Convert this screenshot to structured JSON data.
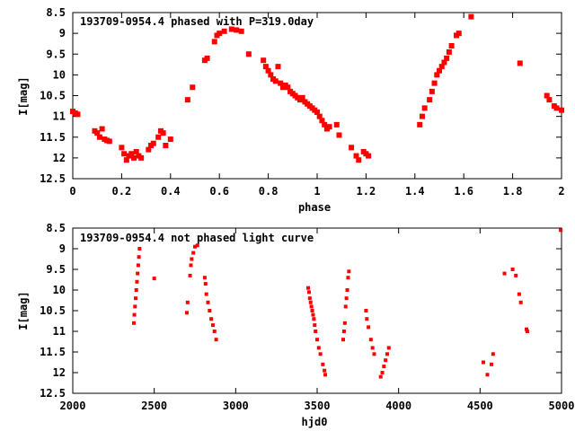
{
  "chart_data": [
    {
      "type": "scatter",
      "title": "193709-0954.4 phased with P=319.0day",
      "xlabel": "phase",
      "ylabel": "I[mag]",
      "xlim": [
        0,
        2
      ],
      "ylim": [
        8.5,
        12.5
      ],
      "y_inverted": true,
      "xticks": [
        0,
        0.2,
        0.4,
        0.6,
        0.8,
        1,
        1.2,
        1.4,
        1.6,
        1.8,
        2
      ],
      "xtick_labels": [
        "0",
        "0.2",
        "0.4",
        "0.6",
        "0.8",
        "1",
        "1.2",
        "1.4",
        "1.6",
        "1.8",
        "2"
      ],
      "yticks": [
        8.5,
        9,
        9.5,
        10,
        10.5,
        11,
        11.5,
        12,
        12.5
      ],
      "ytick_labels": [
        "8.5",
        "9",
        "9.5",
        "10",
        "10.5",
        "11",
        "11.5",
        "12",
        "12.5"
      ],
      "grid": false,
      "marker_color": "#ff0000",
      "points": [
        [
          0.0,
          10.88
        ],
        [
          0.01,
          10.92
        ],
        [
          0.02,
          10.95
        ],
        [
          0.09,
          11.35
        ],
        [
          0.1,
          11.4
        ],
        [
          0.11,
          11.5
        ],
        [
          0.12,
          11.3
        ],
        [
          0.13,
          11.55
        ],
        [
          0.14,
          11.58
        ],
        [
          0.15,
          11.6
        ],
        [
          0.2,
          11.75
        ],
        [
          0.21,
          11.9
        ],
        [
          0.22,
          12.05
        ],
        [
          0.23,
          11.95
        ],
        [
          0.24,
          11.9
        ],
        [
          0.25,
          12.0
        ],
        [
          0.26,
          11.85
        ],
        [
          0.27,
          11.95
        ],
        [
          0.28,
          12.0
        ],
        [
          0.31,
          11.8
        ],
        [
          0.32,
          11.7
        ],
        [
          0.33,
          11.65
        ],
        [
          0.35,
          11.5
        ],
        [
          0.36,
          11.35
        ],
        [
          0.37,
          11.4
        ],
        [
          0.38,
          11.7
        ],
        [
          0.4,
          11.55
        ],
        [
          0.47,
          10.6
        ],
        [
          0.49,
          10.3
        ],
        [
          0.54,
          9.65
        ],
        [
          0.55,
          9.6
        ],
        [
          0.58,
          9.2
        ],
        [
          0.59,
          9.05
        ],
        [
          0.6,
          9.0
        ],
        [
          0.62,
          8.95
        ],
        [
          0.65,
          8.9
        ],
        [
          0.67,
          8.92
        ],
        [
          0.69,
          8.95
        ],
        [
          0.72,
          9.5
        ],
        [
          0.78,
          9.65
        ],
        [
          0.79,
          9.8
        ],
        [
          0.8,
          9.9
        ],
        [
          0.81,
          10.0
        ],
        [
          0.82,
          10.1
        ],
        [
          0.83,
          10.15
        ],
        [
          0.84,
          9.8
        ],
        [
          0.85,
          10.2
        ],
        [
          0.86,
          10.3
        ],
        [
          0.87,
          10.25
        ],
        [
          0.88,
          10.3
        ],
        [
          0.89,
          10.4
        ],
        [
          0.9,
          10.45
        ],
        [
          0.91,
          10.5
        ],
        [
          0.92,
          10.55
        ],
        [
          0.93,
          10.6
        ],
        [
          0.94,
          10.55
        ],
        [
          0.95,
          10.65
        ],
        [
          0.96,
          10.7
        ],
        [
          0.97,
          10.75
        ],
        [
          0.98,
          10.8
        ],
        [
          0.99,
          10.85
        ],
        [
          1.0,
          10.9
        ],
        [
          1.01,
          11.0
        ],
        [
          1.02,
          11.1
        ],
        [
          1.03,
          11.2
        ],
        [
          1.04,
          11.3
        ],
        [
          1.05,
          11.25
        ],
        [
          1.08,
          11.2
        ],
        [
          1.09,
          11.45
        ],
        [
          1.14,
          11.75
        ],
        [
          1.16,
          11.95
        ],
        [
          1.17,
          12.05
        ],
        [
          1.19,
          11.85
        ],
        [
          1.2,
          11.9
        ],
        [
          1.21,
          11.95
        ],
        [
          1.42,
          11.2
        ],
        [
          1.43,
          11.0
        ],
        [
          1.44,
          10.8
        ],
        [
          1.46,
          10.6
        ],
        [
          1.47,
          10.4
        ],
        [
          1.48,
          10.2
        ],
        [
          1.49,
          10.0
        ],
        [
          1.5,
          9.9
        ],
        [
          1.51,
          9.8
        ],
        [
          1.52,
          9.7
        ],
        [
          1.53,
          9.6
        ],
        [
          1.54,
          9.45
        ],
        [
          1.55,
          9.3
        ],
        [
          1.57,
          9.05
        ],
        [
          1.58,
          9.0
        ],
        [
          1.63,
          8.6
        ],
        [
          1.83,
          9.72
        ],
        [
          1.94,
          10.5
        ],
        [
          1.95,
          10.6
        ],
        [
          1.97,
          10.75
        ],
        [
          1.98,
          10.8
        ],
        [
          2.0,
          10.85
        ]
      ]
    },
    {
      "type": "scatter",
      "title": "193709-0954.4 not phased light curve",
      "xlabel": "hjd0",
      "ylabel": "I[mag]",
      "xlim": [
        2000,
        5000
      ],
      "ylim": [
        8.5,
        12.5
      ],
      "y_inverted": true,
      "xticks": [
        2000,
        2500,
        3000,
        3500,
        4000,
        4500,
        5000
      ],
      "xtick_labels": [
        "2000",
        "2500",
        "3000",
        "3500",
        "4000",
        "4500",
        "5000"
      ],
      "yticks": [
        8.5,
        9,
        9.5,
        10,
        10.5,
        11,
        11.5,
        12,
        12.5
      ],
      "ytick_labels": [
        "8.5",
        "9",
        "9.5",
        "10",
        "10.5",
        "11",
        "11.5",
        "12",
        "12.5"
      ],
      "grid": false,
      "marker_color": "#ff0000",
      "points": [
        [
          2375,
          10.8
        ],
        [
          2378,
          10.6
        ],
        [
          2382,
          10.4
        ],
        [
          2386,
          10.2
        ],
        [
          2390,
          10.0
        ],
        [
          2394,
          9.8
        ],
        [
          2398,
          9.6
        ],
        [
          2402,
          9.4
        ],
        [
          2406,
          9.2
        ],
        [
          2410,
          9.0
        ],
        [
          2500,
          9.72
        ],
        [
          2700,
          10.55
        ],
        [
          2705,
          10.3
        ],
        [
          2720,
          9.65
        ],
        [
          2725,
          9.4
        ],
        [
          2730,
          9.25
        ],
        [
          2740,
          9.1
        ],
        [
          2750,
          8.95
        ],
        [
          2765,
          8.92
        ],
        [
          2810,
          9.7
        ],
        [
          2815,
          9.85
        ],
        [
          2820,
          10.1
        ],
        [
          2830,
          10.3
        ],
        [
          2840,
          10.5
        ],
        [
          2850,
          10.7
        ],
        [
          2860,
          10.85
        ],
        [
          2870,
          11.0
        ],
        [
          2880,
          11.2
        ],
        [
          3445,
          9.95
        ],
        [
          3450,
          10.05
        ],
        [
          3455,
          10.2
        ],
        [
          3460,
          10.3
        ],
        [
          3465,
          10.4
        ],
        [
          3470,
          10.5
        ],
        [
          3475,
          10.6
        ],
        [
          3480,
          10.7
        ],
        [
          3485,
          10.85
        ],
        [
          3490,
          11.0
        ],
        [
          3500,
          11.2
        ],
        [
          3510,
          11.4
        ],
        [
          3520,
          11.55
        ],
        [
          3535,
          11.8
        ],
        [
          3545,
          11.95
        ],
        [
          3550,
          12.05
        ],
        [
          3660,
          11.2
        ],
        [
          3665,
          11.0
        ],
        [
          3670,
          10.8
        ],
        [
          3675,
          10.4
        ],
        [
          3680,
          10.2
        ],
        [
          3685,
          10.0
        ],
        [
          3690,
          9.7
        ],
        [
          3695,
          9.55
        ],
        [
          3800,
          10.5
        ],
        [
          3805,
          10.7
        ],
        [
          3815,
          10.9
        ],
        [
          3830,
          11.2
        ],
        [
          3840,
          11.4
        ],
        [
          3850,
          11.55
        ],
        [
          3890,
          12.1
        ],
        [
          3900,
          12.0
        ],
        [
          3910,
          11.85
        ],
        [
          3920,
          11.7
        ],
        [
          3930,
          11.55
        ],
        [
          3940,
          11.4
        ],
        [
          4520,
          11.75
        ],
        [
          4545,
          12.05
        ],
        [
          4570,
          11.8
        ],
        [
          4580,
          11.55
        ],
        [
          4650,
          9.6
        ],
        [
          4700,
          9.5
        ],
        [
          4720,
          9.65
        ],
        [
          4740,
          10.1
        ],
        [
          4750,
          10.3
        ],
        [
          4785,
          10.95
        ],
        [
          4790,
          11.0
        ],
        [
          4995,
          8.55
        ]
      ]
    }
  ]
}
